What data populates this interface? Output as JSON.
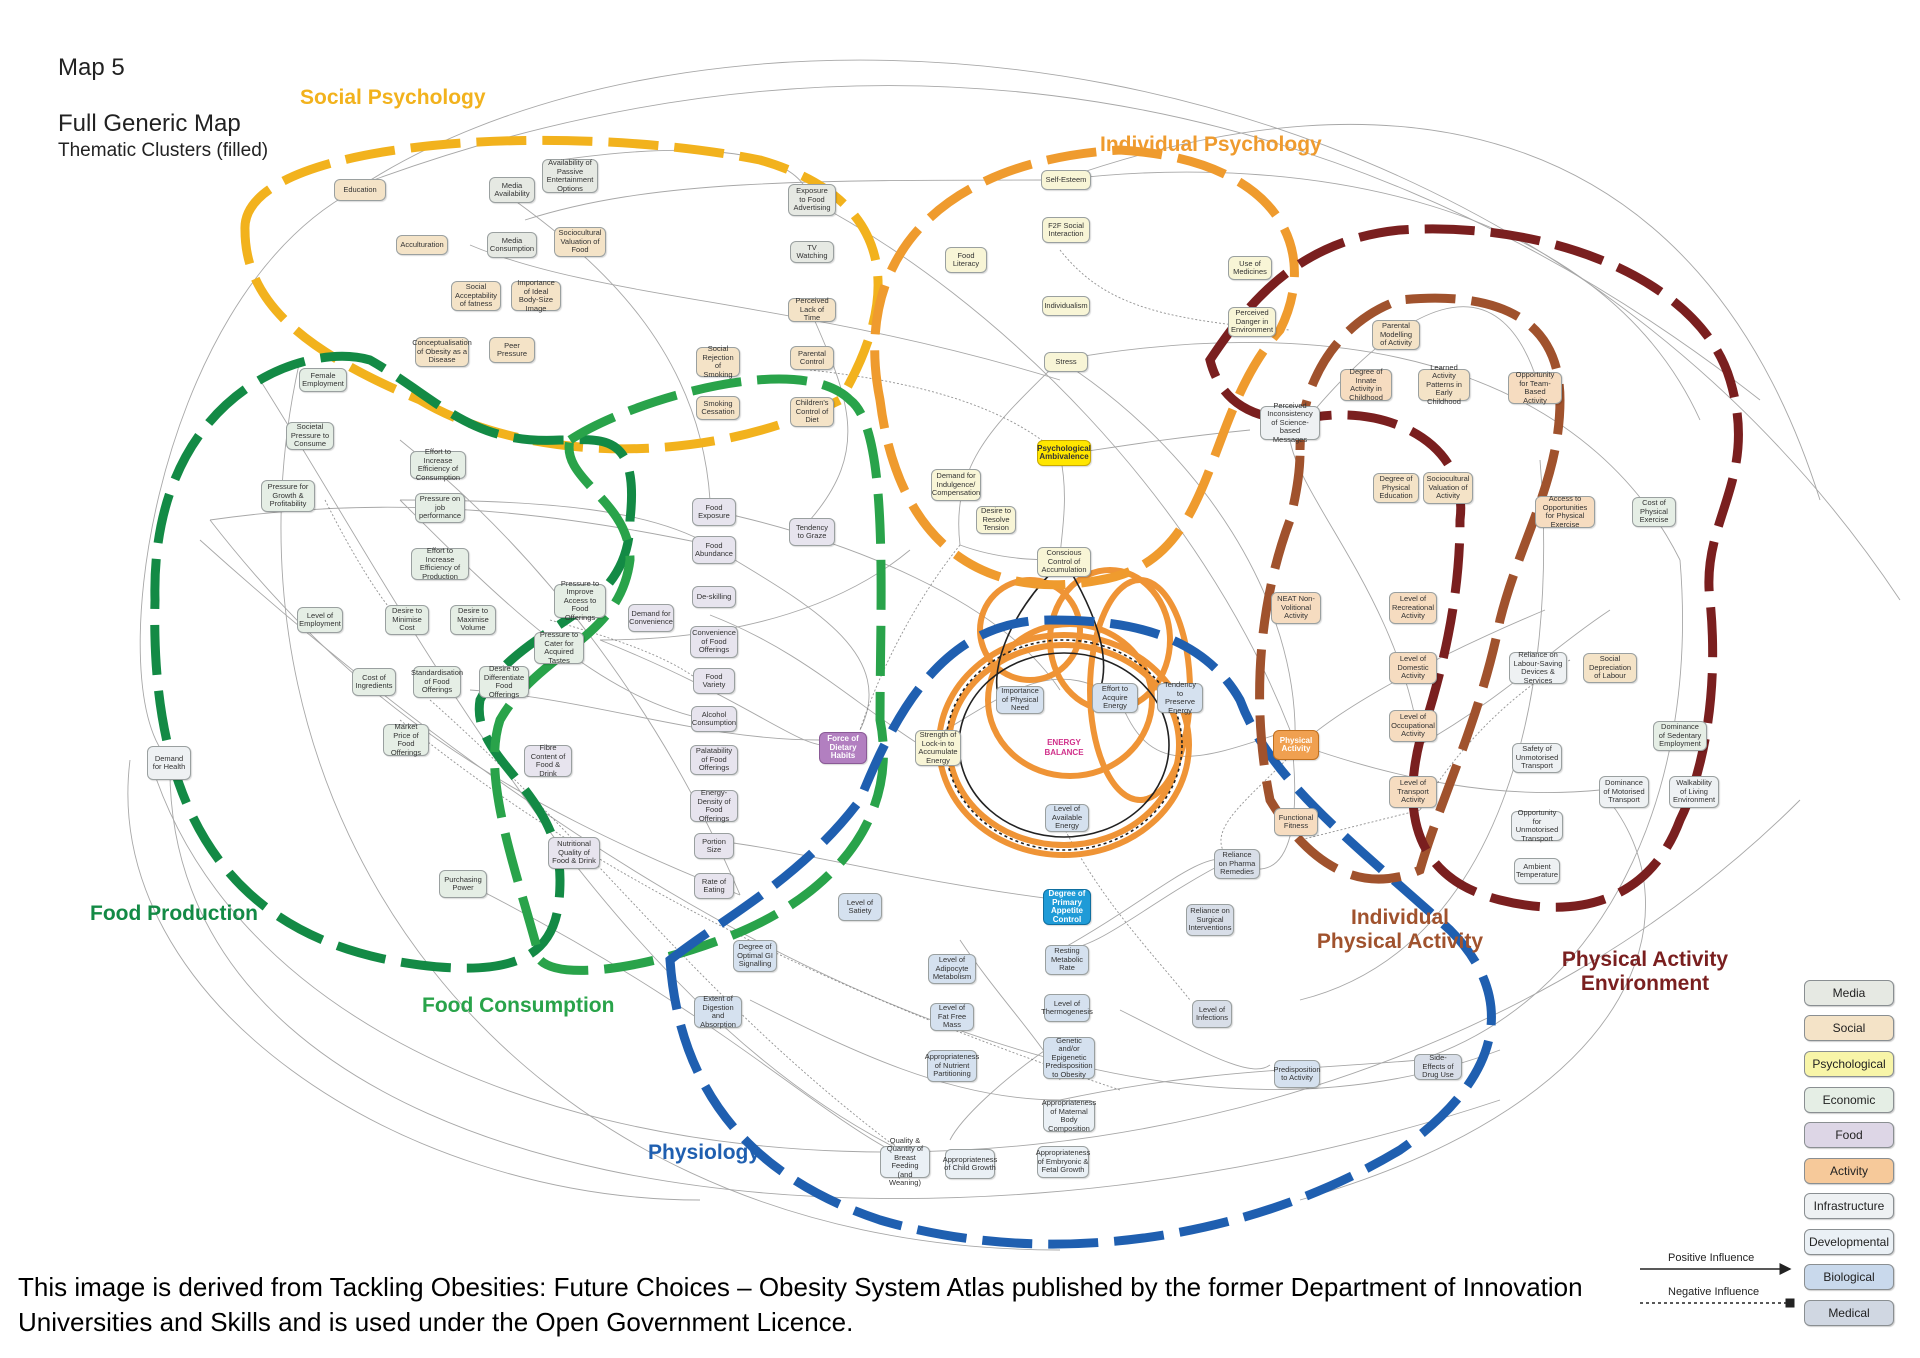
{
  "header": {
    "map_number": "Map 5",
    "title": "Full Generic Map",
    "subtitle": "Thematic Clusters (filled)"
  },
  "clusters": {
    "social_psychology": {
      "label": "Social Psychology",
      "color": "#f2b21d"
    },
    "individual_psychology": {
      "label": "Individual Psychology",
      "color": "#ef9b2e"
    },
    "food_production": {
      "label": "Food Production",
      "color": "#138a45"
    },
    "food_consumption": {
      "label": "Food Consumption",
      "color": "#29a34a"
    },
    "physiology": {
      "label": "Physiology",
      "color": "#1f5fb0"
    },
    "individual_physical_activity": {
      "label": "Individual Physical Activity",
      "color": "#a0522d"
    },
    "physical_activity_environment": {
      "label": "Physical Activity Environment",
      "color": "#7a1f1f"
    }
  },
  "energy_balance_label": "ENERGY BALANCE",
  "nodes": {
    "education": "Education",
    "media_availability": "Media Availability",
    "availability_passive_entertainment": "Availability of Passive Entertainment Options",
    "acculturation": "Acculturation",
    "media_consumption": "Media Consumption",
    "sociocultural_valuation_food": "Sociocultural Valuation of Food",
    "social_acceptability_fatness": "Social Acceptability of fatness",
    "importance_ideal_body_size": "Importance of Ideal Body-Size Image",
    "conceptualisation_obesity": "Conceptualisation of Obesity as a Disease",
    "peer_pressure": "Peer Pressure",
    "exposure_food_advertising": "Exposure to Food Advertising",
    "tv_watching": "TV Watching",
    "perceived_lack_time": "Perceived Lack of Time",
    "parental_control": "Parental Control",
    "social_rejection_smoking": "Social Rejection of Smoking",
    "smoking_cessation": "Smoking Cessation",
    "childrens_control_diet": "Children's Control of Diet",
    "self_esteem": "Self-Esteem",
    "f2f_social_interaction": "F2F Social Interaction",
    "food_literacy": "Food Literacy",
    "individualism": "Individualism",
    "stress": "Stress",
    "use_of_medicines": "Use of Medicines",
    "perceived_danger_environment": "Perceived Danger in Environment",
    "psychological_ambivalence": "Psychological Ambivalence",
    "demand_indulgence": "Demand for Indulgence/ Compensation",
    "desire_resolve_tension": "Desire to Resolve Tension",
    "conscious_control_accumulation": "Conscious Control of Accumulation",
    "perceived_inconsistency": "Perceived Inconsistency of Science-based Messages",
    "parental_modelling": "Parental Modelling of Activity",
    "degree_innate_activity": "Degree of Innate Activity in Childhood",
    "learned_activity_patterns": "Learned Activity Patterns in Early Childhood",
    "opportunity_team_activity": "Opportunity for Team-Based Activity",
    "degree_physical_education": "Degree of Physical Education",
    "sociocultural_valuation_activity": "Sociocultural Valuation of Activity",
    "access_physical_exercise": "Access to Opportunities for Physical Exercise",
    "cost_physical_exercise": "Cost of Physical Exercise",
    "neat": "NEAT Non-Volitional Activity",
    "recreational_activity": "Level of Recreational Activity",
    "domestic_activity": "Level of Domestic Activity",
    "reliance_labour_saving": "Reliance on Labour-Saving Devices & Services",
    "social_depreciation_labour": "Social Depreciation of Labour",
    "occupational_activity": "Level of Occupational Activity",
    "physical_activity": "Physical Activity",
    "dominance_sedentary_employment": "Dominance of Sedentary Employment",
    "safety_unmotorised_transport": "Safety of Unmotorised Transport",
    "transport_activity": "Level of Transport Activity",
    "dominance_motorised_transport": "Dominance of Motorised Transport",
    "walkability": "Walkability of Living Environment",
    "opportunity_unmotorised_transport": "Opportunity for Unmotorised Transport",
    "functional_fitness": "Functional Fitness",
    "ambient_temperature": "Ambient Temperature",
    "female_employment": "Female Employment",
    "societal_pressure_consume": "Societal Pressure to Consume",
    "effort_efficiency_consumption": "Effort to Increase Efficiency of Consumption",
    "pressure_growth_profitability": "Pressure for Growth & Profitability",
    "pressure_job_performance": "Pressure on job performance",
    "effort_efficiency_production": "Effort to Increase Efficiency of Production",
    "level_employment": "Level of Employment",
    "desire_minimise_cost": "Desire to Minimise Cost",
    "desire_maximise_volume": "Desire to Maximise Volume",
    "pressure_improve_access": "Pressure to Improve Access to Food Offerings",
    "pressure_cater_tastes": "Pressure to Cater for Acquired Tastes",
    "cost_ingredients": "Cost of Ingredients",
    "standardisation_food_offerings": "Standardisation of Food Offerings",
    "desire_differentiate_food": "Desire to Differentiate Food Offerings",
    "market_price_food": "Market Price of Food Offerings",
    "demand_health": "Demand for Health",
    "fibre_content": "Fibre Content of Food & Drink",
    "nutritional_quality": "Nutritional Quality of Food & Drink",
    "purchasing_power": "Purchasing Power",
    "food_exposure": "Food Exposure",
    "food_abundance": "Food Abundance",
    "tendency_graze": "Tendency to Graze",
    "de_skilling": "De-skilling",
    "demand_convenience": "Demand for Convenience",
    "convenience_food_offerings": "Convenience of Food Offerings",
    "food_variety": "Food Variety",
    "alcohol_consumption": "Alcohol Consumption",
    "palatability_food": "Palatability of Food Offerings",
    "energy_density": "Energy-Density of Food Offerings",
    "portion_size": "Portion Size",
    "rate_eating": "Rate of Eating",
    "force_dietary_habits": "Force of Dietary Habits",
    "strength_lock_in": "Strength of Lock-in to Accumulate Energy",
    "importance_physical_need": "Importance of Physical Need",
    "effort_acquire_energy": "Effort to Acquire Energy",
    "tendency_preserve_energy": "Tendency to Preserve Energy",
    "level_available_energy": "Level of Available Energy",
    "level_satiety": "Level of Satiety",
    "degree_primary_appetite": "Degree of Primary Appetite Control",
    "reliance_pharma": "Reliance on Pharma Remedies",
    "reliance_surgical": "Reliance on Surgical Interventions",
    "optimal_gi_signalling": "Degree of Optimal GI Signalling",
    "digestion_absorption": "Extent of Digestion and Absorption",
    "adipocyte_metabolism": "Level of Adipocyte Metabolism",
    "resting_metabolic_rate": "Resting Metabolic Rate",
    "fat_free_mass": "Level of Fat Free Mass",
    "level_thermogenesis": "Level of Thermogenesis",
    "level_infections": "Level of Infections",
    "genetic_predisposition": "Genetic and/or Epigenetic Predisposition to Obesity",
    "nutrient_partitioning": "Appropriateness of Nutrient Partitioning",
    "predisposition_activity": "Predisposition to Activity",
    "side_effects_drug": "Side-Effects of Drug Use",
    "maternal_body_composition": "Appropriateness of Maternal Body Composition",
    "breast_feeding": "Quality & Quantity of Breast Feeding (and Weaning)",
    "child_growth": "Appropriateness of Child Growth",
    "embryonic_fetal_growth": "Appropriateness of Embryonic & Fetal Growth"
  },
  "legend": {
    "categories": [
      "Media",
      "Social",
      "Psychological",
      "Economic",
      "Food",
      "Activity",
      "Infrastructure",
      "Developmental",
      "Biological",
      "Medical"
    ],
    "colors": [
      "#e6e9e3",
      "#f4e3c7",
      "#f8f5a8",
      "#e5eee5",
      "#ddd6e6",
      "#f6c99a",
      "#eef1f3",
      "#eaf0f5",
      "#c9d9ec",
      "#d0d7e2"
    ],
    "positive_influence": "Positive Influence",
    "negative_influence": "Negative Influence"
  },
  "credit": "This image is derived from Tackling Obesities: Future Choices – Obesity System Atlas published by the former Department of Innovation Universities and Skills and is used under the Open Government Licence."
}
